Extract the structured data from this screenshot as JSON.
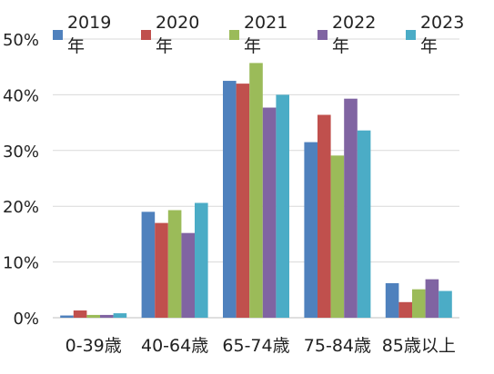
{
  "chart_data": {
    "type": "bar",
    "categories": [
      "0-39歳",
      "40-64歳",
      "65-74歳",
      "75-84歳",
      "85歳以上"
    ],
    "series": [
      {
        "name": "2019年",
        "color": "#4F81BD",
        "values": [
          0.4,
          19.0,
          42.5,
          31.5,
          6.2
        ]
      },
      {
        "name": "2020年",
        "color": "#C0504D",
        "values": [
          1.3,
          17.0,
          42.0,
          36.4,
          2.8
        ]
      },
      {
        "name": "2021年",
        "color": "#9BBB59",
        "values": [
          0.5,
          19.3,
          45.7,
          29.1,
          5.1
        ]
      },
      {
        "name": "2022年",
        "color": "#8064A2",
        "values": [
          0.5,
          15.2,
          37.7,
          39.3,
          6.9
        ]
      },
      {
        "name": "2023年",
        "color": "#4BACC6",
        "values": [
          0.8,
          20.6,
          40.0,
          33.6,
          4.8
        ]
      }
    ],
    "yticks": [
      "0%",
      "10%",
      "20%",
      "30%",
      "40%",
      "50%"
    ],
    "ylim": [
      0,
      50
    ],
    "grid": true,
    "legend_position": "top"
  }
}
